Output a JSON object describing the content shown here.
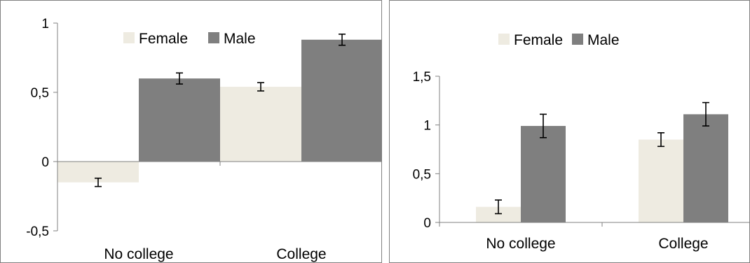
{
  "colors": {
    "female": "#EEEBE1",
    "male": "#7F7F7F",
    "axis": "#808080",
    "border": "#808080",
    "errorbar": "#000000"
  },
  "chart_data": [
    {
      "type": "bar",
      "categories": [
        "No college",
        "College"
      ],
      "series": [
        {
          "name": "Female",
          "values": [
            -0.15,
            0.54
          ],
          "errors": [
            0.03,
            0.03
          ]
        },
        {
          "name": "Male",
          "values": [
            0.6,
            0.88
          ],
          "errors": [
            0.04,
            0.04
          ]
        }
      ],
      "ylim": [
        -0.5,
        1
      ],
      "yticks": [
        -0.5,
        0,
        0.5,
        1
      ],
      "ytick_labels": [
        "-0,5",
        "0",
        "0,5",
        "1"
      ],
      "legend": "top",
      "grid": false
    },
    {
      "type": "bar",
      "categories": [
        "No college",
        "College"
      ],
      "series": [
        {
          "name": "Female",
          "values": [
            0.16,
            0.85
          ],
          "errors": [
            0.07,
            0.07
          ]
        },
        {
          "name": "Male",
          "values": [
            0.99,
            1.11
          ],
          "errors": [
            0.12,
            0.12
          ]
        }
      ],
      "ylim": [
        0,
        1.5
      ],
      "yticks": [
        0,
        0.5,
        1,
        1.5
      ],
      "ytick_labels": [
        "0",
        "0,5",
        "1",
        "1,5"
      ],
      "legend": "top",
      "grid": false
    }
  ]
}
